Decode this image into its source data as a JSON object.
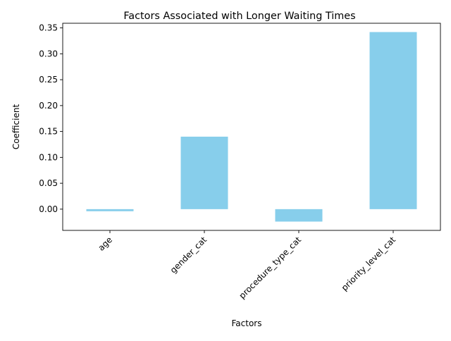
{
  "chart_data": {
    "type": "bar",
    "title": "Factors Associated with Longer Waiting Times",
    "xlabel": "Factors",
    "ylabel": "Coefficient",
    "categories": [
      "age",
      "gender_cat",
      "procedure_type_cat",
      "priority_level_cat"
    ],
    "values": [
      -0.004,
      0.14,
      -0.024,
      0.342
    ],
    "ylim": [
      -0.041,
      0.359
    ],
    "yticks": [
      0.0,
      0.05,
      0.1,
      0.15,
      0.2,
      0.25,
      0.3,
      0.35
    ],
    "ytick_labels": [
      "0.00",
      "0.05",
      "0.10",
      "0.15",
      "0.20",
      "0.25",
      "0.30",
      "0.35"
    ],
    "bar_color": "#87ceeb",
    "grid": false,
    "legend": false
  }
}
